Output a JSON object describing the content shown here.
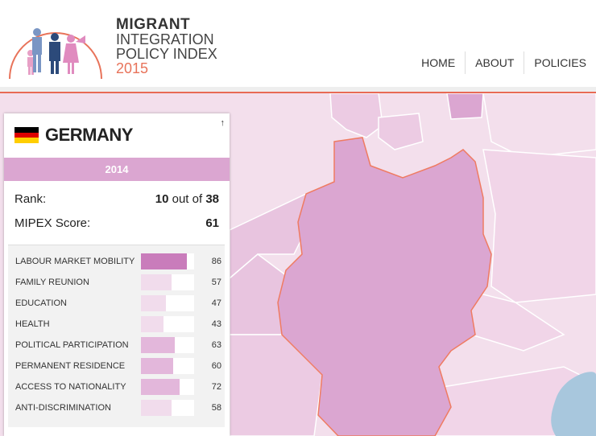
{
  "brand": {
    "line1": "MIGRANT",
    "line2": "INTEGRATION",
    "line3": "POLICY INDEX",
    "year": "2015",
    "accent_color": "#e8735a"
  },
  "nav": [
    "HOME",
    "ABOUT",
    "POLICIES"
  ],
  "panel": {
    "country": "GERMANY",
    "flag_colors": [
      "#000000",
      "#dd0000",
      "#ffce00"
    ],
    "close_icon": "arrow-up-icon",
    "close_glyph": "↑",
    "year": "2014",
    "rank_label": "Rank:",
    "rank_value": "10",
    "rank_out_of": "out of",
    "rank_total": "38",
    "score_label": "MIPEX Score:",
    "score_value": "61",
    "policies": [
      {
        "label": "LABOUR MARKET MOBILITY",
        "value": "86",
        "score": 86,
        "color": "#c97cbb"
      },
      {
        "label": "FAMILY REUNION",
        "value": "57",
        "score": 57,
        "color": "#f1dcec"
      },
      {
        "label": "EDUCATION",
        "value": "47",
        "score": 47,
        "color": "#f1dcec"
      },
      {
        "label": "HEALTH",
        "value": "43",
        "score": 43,
        "color": "#f1dcec"
      },
      {
        "label": "POLITICAL PARTICIPATION",
        "value": "63",
        "score": 63,
        "color": "#e3b7db"
      },
      {
        "label": "PERMANENT RESIDENCE",
        "value": "60",
        "score": 60,
        "color": "#e3b7db"
      },
      {
        "label": "ACCESS TO NATIONALITY",
        "value": "72",
        "score": 72,
        "color": "#e3b7db"
      },
      {
        "label": "ANTI-DISCRIMINATION",
        "value": "58",
        "score": 58,
        "color": "#f1dcec"
      }
    ]
  },
  "map_colors": {
    "background": "#f3dfec",
    "germany": "#dba6d1",
    "neighbor_dark": "#e8c4df",
    "border": "#ef7b62",
    "water": "#a8c7dd"
  }
}
